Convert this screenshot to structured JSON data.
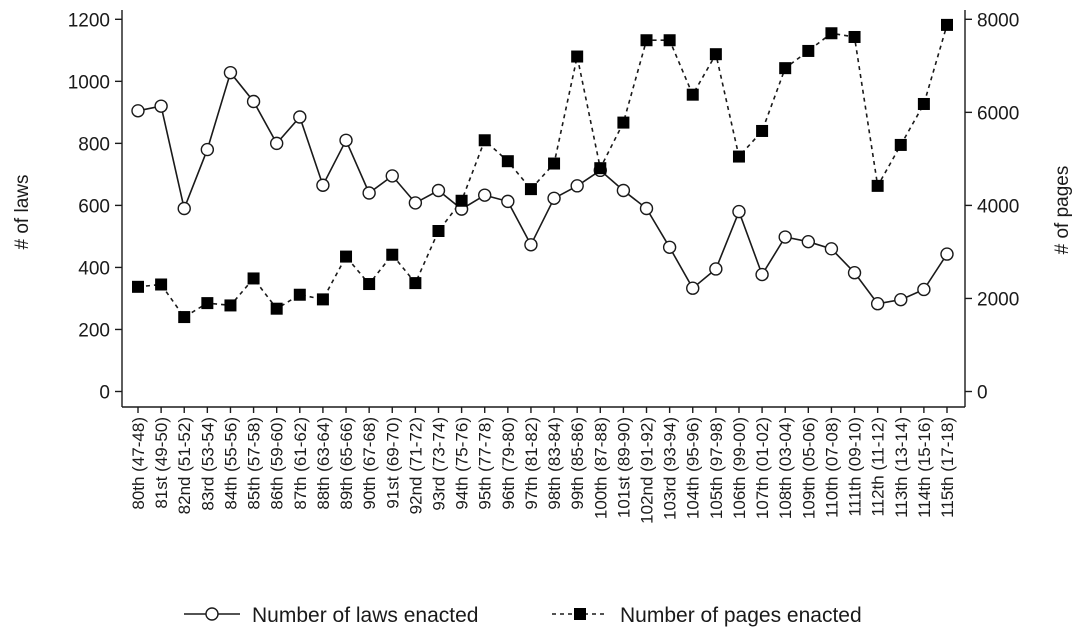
{
  "chart_data": {
    "type": "line",
    "categories": [
      "80th (47-48)",
      "81st (49-50)",
      "82nd (51-52)",
      "83rd (53-54)",
      "84th (55-56)",
      "85th (57-58)",
      "86th (59-60)",
      "87th (61-62)",
      "88th (63-64)",
      "89th (65-66)",
      "90th (67-68)",
      "91st (69-70)",
      "92nd (71-72)",
      "93rd (73-74)",
      "94th (75-76)",
      "95th (77-78)",
      "96th (79-80)",
      "97th (81-82)",
      "98th (83-84)",
      "99th (85-86)",
      "100th (87-88)",
      "101st (89-90)",
      "102nd (91-92)",
      "103rd (93-94)",
      "104th (95-96)",
      "105th (97-98)",
      "106th (99-00)",
      "107th (01-02)",
      "108th (03-04)",
      "109th (05-06)",
      "110th (07-08)",
      "111th (09-10)",
      "112th (11-12)",
      "113th (13-14)",
      "114th (15-16)",
      "115th (17-18)"
    ],
    "series": [
      {
        "name": "Number of laws enacted",
        "axis": "left",
        "marker": "open-circle",
        "line": "solid",
        "values": [
          905,
          920,
          590,
          780,
          1028,
          935,
          800,
          885,
          665,
          810,
          640,
          695,
          608,
          648,
          588,
          633,
          613,
          473,
          623,
          663,
          713,
          648,
          590,
          465,
          333,
          395,
          580,
          377,
          498,
          483,
          460,
          383,
          283,
          296,
          329,
          443
        ]
      },
      {
        "name": "Number of pages enacted",
        "axis": "right",
        "marker": "filled-square",
        "line": "dashed",
        "values": [
          2250,
          2300,
          1600,
          1900,
          1850,
          2430,
          1780,
          2080,
          1980,
          2900,
          2310,
          2940,
          2330,
          3450,
          4100,
          5400,
          4950,
          4350,
          4900,
          7200,
          4800,
          5780,
          7550,
          7550,
          6380,
          7250,
          5050,
          5600,
          6950,
          7320,
          7700,
          7620,
          4420,
          5300,
          6180,
          7880
        ]
      }
    ],
    "ylabel": "# of laws",
    "y2label": "# of pages",
    "ylim": [
      -50,
      1230
    ],
    "y2lim": [
      -333,
      8200
    ],
    "yticks": [
      "0",
      "200",
      "400",
      "600",
      "800",
      "1000",
      "1200"
    ],
    "y2ticks": [
      "0",
      "2000",
      "4000",
      "6000",
      "8000"
    ],
    "legend_position": "bottom",
    "grid": false,
    "colors": {
      "line": "#1a1a1a",
      "marker_fill_open": "#ffffff",
      "marker_fill_solid": "#000000"
    }
  }
}
